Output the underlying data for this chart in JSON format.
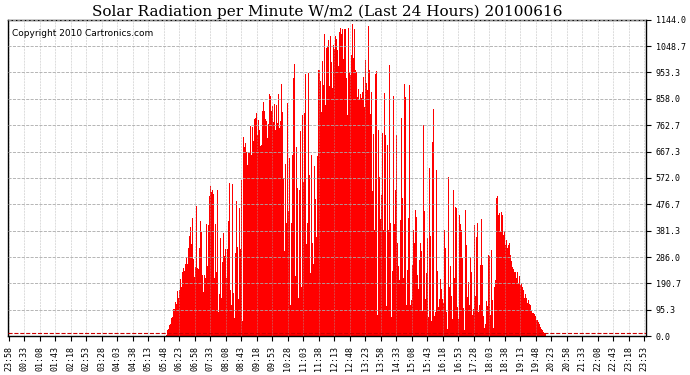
{
  "title": "Solar Radiation per Minute W/m2 (Last 24 Hours) 20100616",
  "copyright_text": "Copyright 2010 Cartronics.com",
  "ymax": 1144.0,
  "yticks": [
    0.0,
    95.3,
    190.7,
    286.0,
    381.3,
    476.7,
    572.0,
    667.3,
    762.7,
    858.0,
    953.3,
    1048.7,
    1144.0
  ],
  "bar_color": "#ff0000",
  "bg_color": "#ffffff",
  "grid_color_h": "#aaaaaa",
  "grid_color_v": "#aaaaaa",
  "border_color": "#000000",
  "title_fontsize": 11,
  "copyright_fontsize": 6.5,
  "tick_fontsize": 6,
  "dashed_line_color": "#cc0000",
  "dashed_line_y": 12,
  "tick_step_minutes": 35
}
